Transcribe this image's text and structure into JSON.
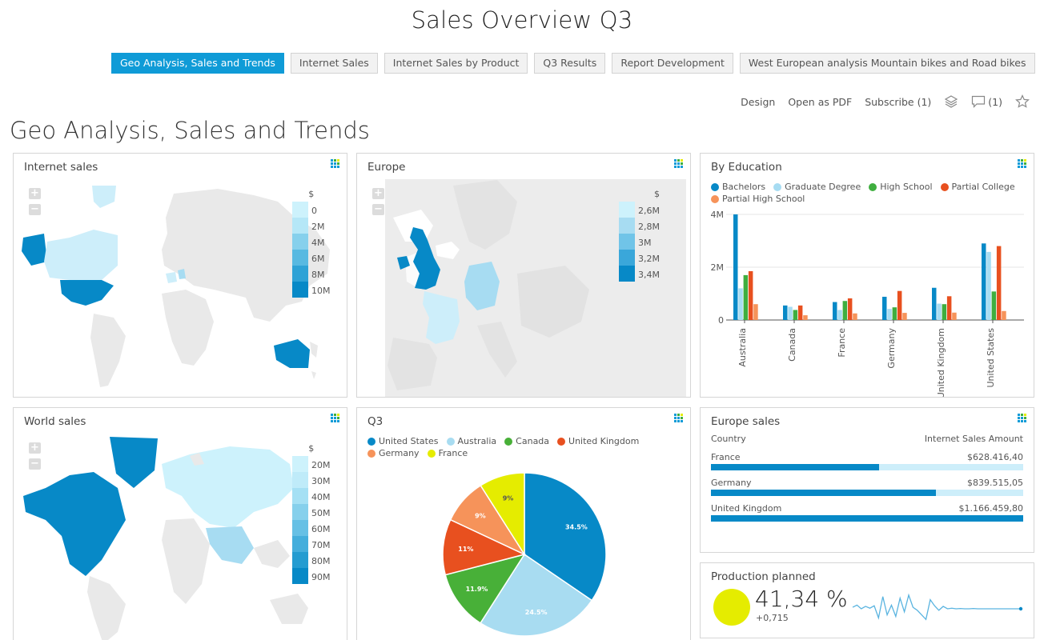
{
  "dashboard_title": "Sales Overview Q3",
  "tabs": [
    {
      "label": "Geo Analysis, Sales and Trends",
      "active": true
    },
    {
      "label": "Internet Sales",
      "active": false
    },
    {
      "label": "Internet Sales by Product",
      "active": false
    },
    {
      "label": "Q3 Results",
      "active": false
    },
    {
      "label": "Report Development",
      "active": false
    },
    {
      "label": "West European analysis Mountain bikes and Road bikes",
      "active": false
    }
  ],
  "toolbar": {
    "design": "Design",
    "open_pdf": "Open as PDF",
    "subscribe": "Subscribe (1)",
    "comments": "(1)"
  },
  "page_title": "Geo Analysis, Sales and Trends",
  "colors": {
    "accent": "#0f9bd7",
    "bachelors": "#0789c7",
    "graduate": "#a7dcf2",
    "high_school": "#3fae3f",
    "partial_college": "#e8501f",
    "partial_high_school": "#f6935a",
    "us": "#0789c7",
    "australia": "#a8dcf1",
    "canada": "#48b038",
    "uk": "#e8501f",
    "germany": "#f6935a",
    "france": "#e5ec00"
  },
  "zoom": {
    "plus": "+",
    "minus": "−"
  },
  "internet_sales": {
    "title": "Internet sales",
    "scale_currency": "$",
    "scale": [
      "0",
      "2M",
      "4M",
      "6M",
      "8M",
      "10M"
    ]
  },
  "europe": {
    "title": "Europe",
    "scale_currency": "$",
    "scale": [
      "2,6M",
      "2,8M",
      "3M",
      "3,2M",
      "3,4M"
    ]
  },
  "world_sales": {
    "title": "World sales",
    "scale_currency": "$",
    "scale": [
      "20M",
      "30M",
      "40M",
      "50M",
      "60M",
      "70M",
      "80M",
      "90M"
    ]
  },
  "by_education": {
    "title": "By Education"
  },
  "q3": {
    "title": "Q3"
  },
  "europe_sales": {
    "title": "Europe sales",
    "col_country": "Country",
    "col_amount": "Internet Sales Amount",
    "rows": [
      {
        "country": "France",
        "amount": "$628.416,40",
        "fraction": 0.539
      },
      {
        "country": "Germany",
        "amount": "$839.515,05",
        "fraction": 0.72
      },
      {
        "country": "United Kingdom",
        "amount": "$1.166.459,80",
        "fraction": 1.0
      }
    ]
  },
  "production": {
    "title": "Production planned",
    "value": "41,34 %",
    "delta": "+0,715"
  },
  "chart_data": [
    {
      "type": "bar",
      "title": "By Education",
      "categories": [
        "Australia",
        "Canada",
        "France",
        "Germany",
        "United Kingdom",
        "United States"
      ],
      "series": [
        {
          "name": "Bachelors",
          "values": [
            4.0,
            0.55,
            0.68,
            0.88,
            1.22,
            2.9
          ]
        },
        {
          "name": "Graduate Degree",
          "values": [
            1.2,
            0.5,
            0.38,
            0.42,
            0.62,
            2.58
          ]
        },
        {
          "name": "High School",
          "values": [
            1.7,
            0.38,
            0.72,
            0.48,
            0.6,
            1.08
          ]
        },
        {
          "name": "Partial College",
          "values": [
            1.85,
            0.55,
            0.82,
            1.1,
            0.9,
            2.8
          ]
        },
        {
          "name": "Partial High School",
          "values": [
            0.6,
            0.18,
            0.25,
            0.27,
            0.28,
            0.34
          ]
        }
      ],
      "ylabel": "",
      "xlabel": "",
      "ylim": [
        0,
        4
      ],
      "yticks": [
        "0",
        "2M",
        "4M"
      ],
      "ytick_values": [
        0,
        2,
        4
      ]
    },
    {
      "type": "pie",
      "title": "Q3",
      "labels": [
        "United States",
        "Australia",
        "Canada",
        "United Kingdom",
        "Germany",
        "France"
      ],
      "values": [
        34.5,
        24.5,
        11.9,
        11,
        9,
        9
      ],
      "value_labels": [
        "34.5%",
        "24.5%",
        "11.9%",
        "11%",
        "9%",
        "9%"
      ]
    },
    {
      "type": "line",
      "title": "Production planned",
      "values": [
        0.55,
        0.62,
        0.5,
        0.58,
        0.52,
        0.6,
        0.2,
        0.9,
        0.3,
        0.62,
        0.25,
        0.85,
        0.4,
        0.95,
        0.55,
        0.45,
        0.3,
        0.15,
        0.8,
        0.6,
        0.45,
        0.58,
        0.5,
        0.52,
        0.5,
        0.51,
        0.5,
        0.5,
        0.51,
        0.5,
        0.5,
        0.5,
        0.5,
        0.5,
        0.5,
        0.5,
        0.5,
        0.5,
        0.5,
        0.5
      ]
    }
  ]
}
